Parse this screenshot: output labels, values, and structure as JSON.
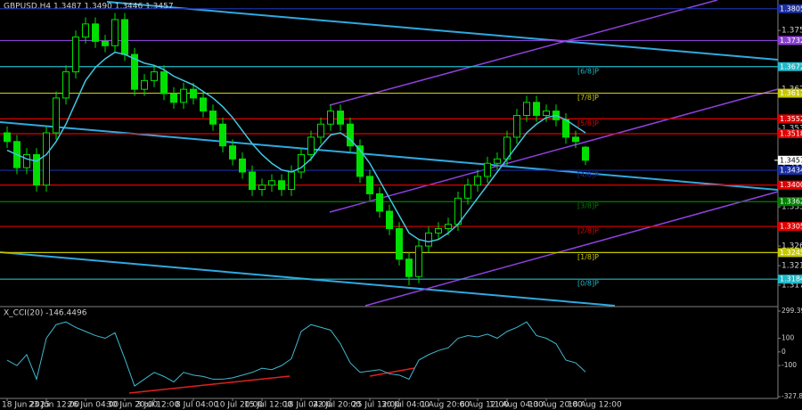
{
  "chart_data": [
    {
      "type": "candlestick",
      "title": "GBPUSD,H4  1.3487 1.3490 1.3446 1.3457",
      "xticks": [
        {
          "value": 0,
          "label": "18 Jun 2025"
        },
        {
          "value": 4,
          "label": "23 Jun 12:00"
        },
        {
          "value": 8,
          "label": "26 Jun 04:00"
        },
        {
          "value": 12,
          "label": "30 Jun 20:00"
        },
        {
          "value": 15,
          "label": "3 Jul 12:00"
        },
        {
          "value": 19,
          "label": "8 Jul 04:00"
        },
        {
          "value": 23,
          "label": "10 Jul 20:00"
        },
        {
          "value": 26,
          "label": "15 Jul 12:00"
        },
        {
          "value": 30,
          "label": "18 Jul 04:00"
        },
        {
          "value": 33,
          "label": "22 Jul 20:00"
        },
        {
          "value": 37,
          "label": "25 Jul 12:00"
        },
        {
          "value": 40,
          "label": "30 Jul 04:00"
        },
        {
          "value": 44,
          "label": "1 Aug 20:00"
        },
        {
          "value": 48,
          "label": "6 Aug 12:00"
        },
        {
          "value": 51,
          "label": "11 Aug 04:00"
        },
        {
          "value": 55,
          "label": "13 Aug 20:00"
        },
        {
          "value": 59,
          "label": "18 Aug 12:00"
        }
      ],
      "open": [
        1.352,
        1.35,
        1.344,
        1.347,
        1.34,
        1.352,
        1.36,
        1.366,
        1.374,
        1.377,
        1.373,
        1.372,
        1.378,
        1.37,
        1.362,
        1.364,
        1.366,
        1.361,
        1.359,
        1.362,
        1.36,
        1.357,
        1.354,
        1.349,
        1.346,
        1.343,
        1.339,
        1.34,
        1.341,
        1.339,
        1.343,
        1.347,
        1.351,
        1.354,
        1.357,
        1.354,
        1.349,
        1.342,
        1.338,
        1.334,
        1.33,
        1.323,
        1.319,
        1.326,
        1.329,
        1.33,
        1.331,
        1.337,
        1.34,
        1.342,
        1.345,
        1.346,
        1.351,
        1.356,
        1.359,
        1.356,
        1.357,
        1.355,
        1.351,
        1.3487
      ],
      "high": [
        1.3535,
        1.3515,
        1.3485,
        1.3485,
        1.3535,
        1.3615,
        1.3675,
        1.3755,
        1.3785,
        1.3785,
        1.3745,
        1.3795,
        1.3795,
        1.3715,
        1.3655,
        1.3675,
        1.3675,
        1.3625,
        1.3635,
        1.3635,
        1.3615,
        1.3585,
        1.3555,
        1.3505,
        1.3475,
        1.3445,
        1.3415,
        1.3425,
        1.3425,
        1.3445,
        1.3485,
        1.3525,
        1.3555,
        1.3585,
        1.3585,
        1.3555,
        1.3505,
        1.3435,
        1.3395,
        1.3355,
        1.3315,
        1.3245,
        1.3275,
        1.3305,
        1.3315,
        1.3325,
        1.3385,
        1.3415,
        1.3435,
        1.3465,
        1.3475,
        1.3525,
        1.3575,
        1.3605,
        1.3605,
        1.3585,
        1.3585,
        1.3565,
        1.3525,
        1.349
      ],
      "low": [
        1.3485,
        1.3425,
        1.3425,
        1.3385,
        1.3385,
        1.3505,
        1.3585,
        1.3645,
        1.3725,
        1.3715,
        1.3705,
        1.3705,
        1.3685,
        1.3605,
        1.3605,
        1.3625,
        1.3595,
        1.3575,
        1.3575,
        1.3585,
        1.3555,
        1.3525,
        1.3475,
        1.3445,
        1.3415,
        1.3375,
        1.3375,
        1.3385,
        1.3375,
        1.3375,
        1.3415,
        1.3455,
        1.3495,
        1.3525,
        1.3525,
        1.3475,
        1.3405,
        1.3365,
        1.3325,
        1.3285,
        1.3215,
        1.317,
        1.3175,
        1.3245,
        1.3275,
        1.3285,
        1.3295,
        1.3355,
        1.3385,
        1.3405,
        1.3435,
        1.3445,
        1.3495,
        1.3545,
        1.3545,
        1.3545,
        1.3535,
        1.3495,
        1.3485,
        1.3446
      ],
      "close": [
        1.35,
        1.344,
        1.347,
        1.34,
        1.352,
        1.36,
        1.366,
        1.374,
        1.377,
        1.373,
        1.372,
        1.378,
        1.37,
        1.362,
        1.364,
        1.366,
        1.361,
        1.359,
        1.362,
        1.36,
        1.357,
        1.354,
        1.349,
        1.346,
        1.343,
        1.339,
        1.34,
        1.341,
        1.339,
        1.343,
        1.347,
        1.351,
        1.354,
        1.357,
        1.354,
        1.349,
        1.342,
        1.338,
        1.334,
        1.33,
        1.323,
        1.319,
        1.326,
        1.329,
        1.33,
        1.331,
        1.337,
        1.34,
        1.342,
        1.345,
        1.346,
        1.351,
        1.356,
        1.359,
        1.356,
        1.357,
        1.355,
        1.351,
        1.35,
        1.3457
      ],
      "color": "#00e000",
      "ma": {
        "color": "#40c8e0",
        "values": [
          1.348,
          1.347,
          1.346,
          1.3455,
          1.347,
          1.35,
          1.354,
          1.359,
          1.364,
          1.367,
          1.369,
          1.3705,
          1.37,
          1.369,
          1.368,
          1.3675,
          1.3665,
          1.365,
          1.364,
          1.363,
          1.3615,
          1.36,
          1.358,
          1.3555,
          1.3525,
          1.3495,
          1.347,
          1.345,
          1.3435,
          1.343,
          1.344,
          1.346,
          1.349,
          1.3515,
          1.352,
          1.3505,
          1.348,
          1.345,
          1.341,
          1.337,
          1.333,
          1.329,
          1.3275,
          1.327,
          1.3275,
          1.329,
          1.331,
          1.334,
          1.337,
          1.34,
          1.343,
          1.346,
          1.349,
          1.352,
          1.354,
          1.3555,
          1.356,
          1.355,
          1.3535,
          1.352
        ]
      },
      "ylim": [
        1.3123,
        1.3825
      ],
      "yticks": [
        {
          "value": 1.317,
          "label": "1.3170"
        },
        {
          "value": 1.3215,
          "label": "1.3215"
        },
        {
          "value": 1.326,
          "label": "1.3260"
        },
        {
          "value": 1.335,
          "label": "1.3350"
        },
        {
          "value": 1.344,
          "label": "1.3440"
        },
        {
          "value": 1.353,
          "label": "1.3530"
        },
        {
          "value": 1.362,
          "label": "1.3620"
        },
        {
          "value": 1.3755,
          "label": "1.3755"
        }
      ],
      "levels": [
        {
          "value": 1.3805,
          "label": "1.3805",
          "color": "#1a2fa0"
        },
        {
          "value": 1.3732,
          "label": "1.3732",
          "color": "#8a3fd0"
        },
        {
          "name": "[6/8]P",
          "value": 1.3672,
          "label": "1.3672",
          "color": "#20b8c8"
        },
        {
          "name": "[7/8]P",
          "value": 1.3611,
          "label": "1.3611",
          "color": "#c8c800"
        },
        {
          "name": "[5/8]P",
          "value": 1.3552,
          "label": "1.3552",
          "color": "#e00000"
        },
        {
          "value": 1.3518,
          "label": "1.3518",
          "color": "#e00000"
        },
        {
          "name": "[4/8]P",
          "value": 1.3434,
          "label": "1.3434",
          "color": "#1a2fa0"
        },
        {
          "value": 1.34,
          "label": "1.3400",
          "color": "#e00000"
        },
        {
          "name": "[3/8]P",
          "value": 1.3362,
          "label": "1.3362",
          "color": "#008000"
        },
        {
          "name": "[2/8]P",
          "value": 1.3305,
          "label": "1.3305",
          "color": "#e00000"
        },
        {
          "name": "[1/8]P",
          "value": 1.3245,
          "label": "1.3245",
          "color": "#c8c800"
        },
        {
          "name": "[0/8]P",
          "value": 1.3184,
          "label": "1.3184",
          "color": "#20b8c8"
        }
      ],
      "last_price": {
        "value": 1.3457,
        "label": "1.3457"
      }
    },
    {
      "type": "line",
      "title": "X_CCI(20) -146.4496",
      "color": "#40b8d0",
      "values": [
        -60,
        -100,
        -20,
        -200,
        100,
        200,
        220,
        180,
        150,
        120,
        100,
        140,
        -50,
        -250,
        -200,
        -150,
        -180,
        -220,
        -150,
        -170,
        -180,
        -200,
        -200,
        -190,
        -170,
        -150,
        -120,
        -130,
        -100,
        -50,
        150,
        200,
        180,
        160,
        60,
        -80,
        -150,
        -140,
        -130,
        -160,
        -170,
        -200,
        -60,
        -20,
        10,
        30,
        100,
        120,
        110,
        130,
        100,
        150,
        180,
        220,
        120,
        100,
        60,
        -60,
        -80,
        -146.4496
      ],
      "ylim": [
        -327.8322,
        299.3969
      ],
      "yticks": [
        -327.8322,
        -100,
        0,
        100,
        299.3969
      ]
    }
  ]
}
